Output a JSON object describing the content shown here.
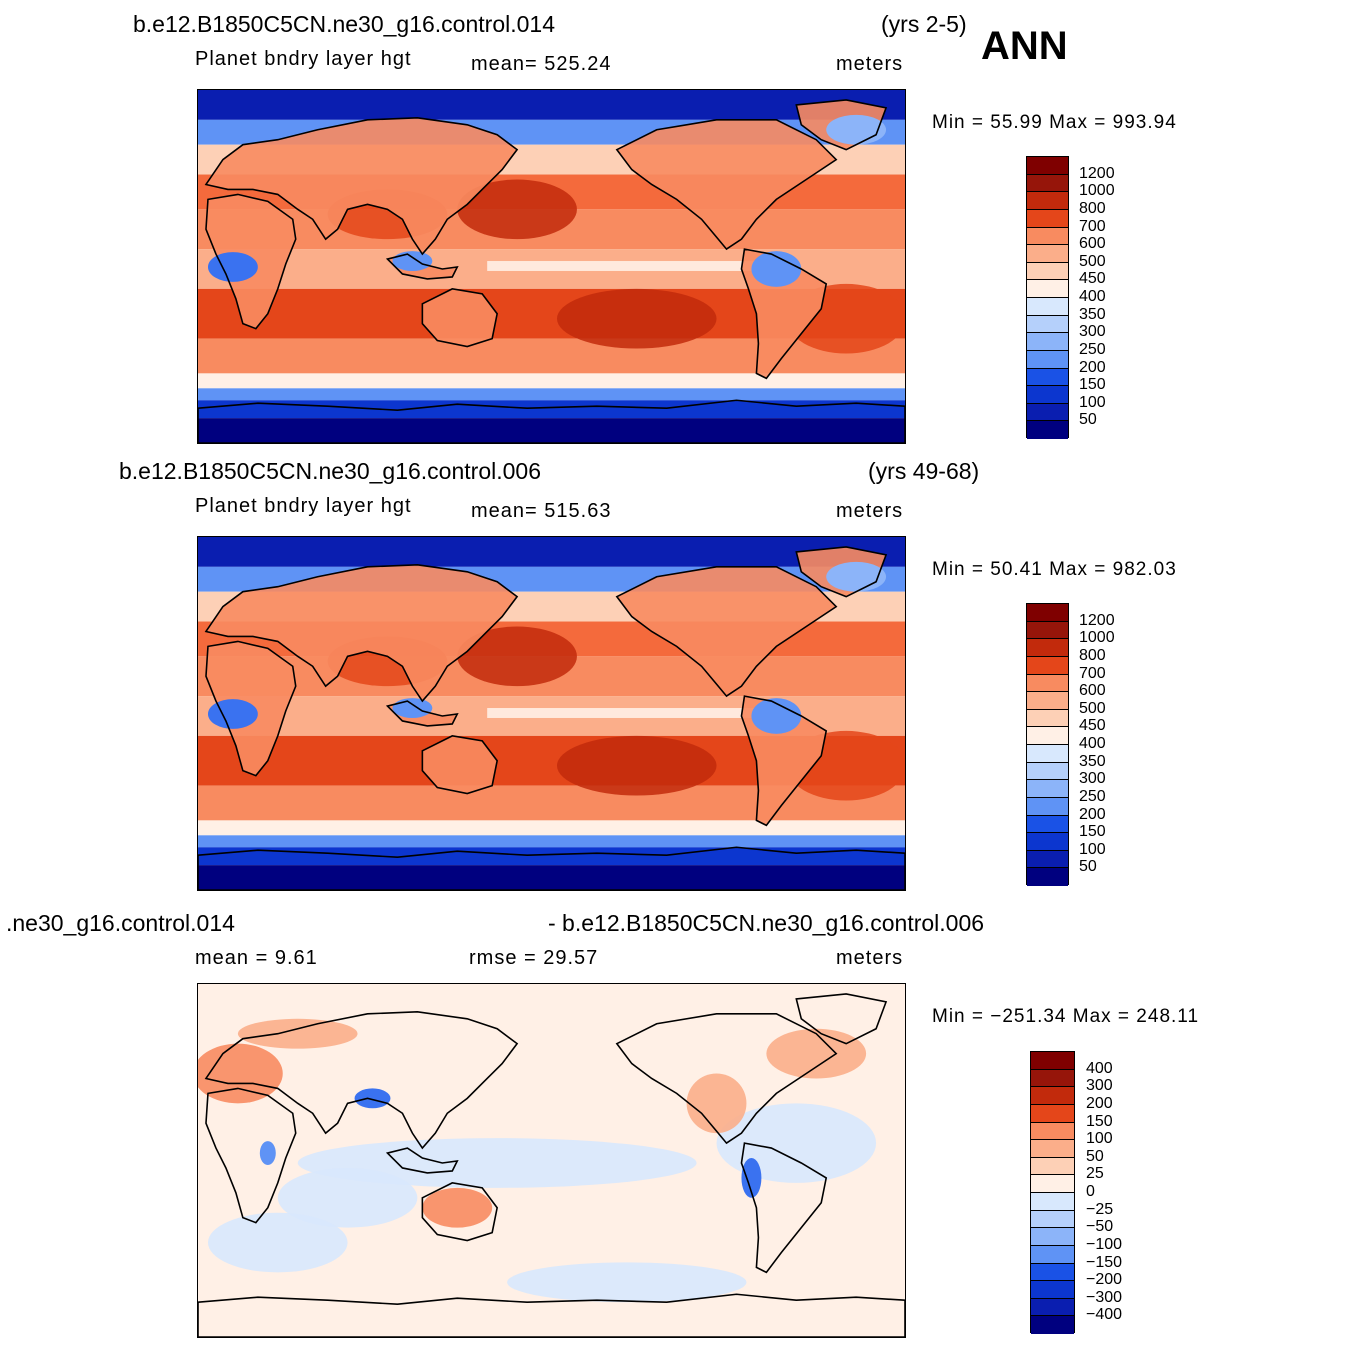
{
  "season": "ANN",
  "palette_abs": [
    "#00007f",
    "#0a1eb0",
    "#0c36cf",
    "#1a52e6",
    "#3a72f0",
    "#5f93f5",
    "#8cb4f9",
    "#b5d0fb",
    "#d8e8fd",
    "#fff0e6",
    "#fdd0b6",
    "#fbae8a",
    "#f88b60",
    "#f46a3c",
    "#e4461a",
    "#c22a0c",
    "#96150a",
    "#7f0000"
  ],
  "palette_diff": [
    "#00007f",
    "#0a1eb0",
    "#0c36cf",
    "#1a52e6",
    "#3a72f0",
    "#5f93f5",
    "#8cb4f9",
    "#b5d0fb",
    "#d8e8fd",
    "#fff0e6",
    "#fdd0b6",
    "#fbae8a",
    "#f88b60",
    "#f46a3c",
    "#e4461a",
    "#c22a0c",
    "#96150a",
    "#7f0000"
  ],
  "panels": [
    {
      "case": "b.e12.B1850C5CN.ne30_g16.control.014",
      "years": "(yrs 2-5)",
      "variable": "Planet  bndry  layer  hgt",
      "stat1": "mean=  525.24",
      "stat2": "",
      "units": "meters",
      "minmax": "Min  =    55.99  Max  =  993.94",
      "ticks": [
        "1200",
        "1000",
        "800",
        "700",
        "600",
        "500",
        "450",
        "400",
        "350",
        "300",
        "250",
        "200",
        "150",
        "100",
        "50"
      ],
      "kind": "abs",
      "contrast": 1.0
    },
    {
      "case": "b.e12.B1850C5CN.ne30_g16.control.006",
      "years": "(yrs 49-68)",
      "variable": "Planet  bndry  layer  hgt",
      "stat1": "mean=  515.63",
      "stat2": "",
      "units": "meters",
      "minmax": "Min  =    50.41  Max  =  982.03",
      "ticks": [
        "1200",
        "1000",
        "800",
        "700",
        "600",
        "500",
        "450",
        "400",
        "350",
        "300",
        "250",
        "200",
        "150",
        "100",
        "50"
      ],
      "kind": "abs",
      "contrast": 1.0
    },
    {
      "case": ".ne30_g16.control.014",
      "years": "- b.e12.B1850C5CN.ne30_g16.control.006",
      "variable": "mean  =      9.61",
      "stat1": "rmse  =    29.57",
      "stat2": "",
      "units": "meters",
      "minmax": "Min  =  −251.34  Max  =  248.11",
      "ticks": [
        "400",
        "300",
        "200",
        "150",
        "100",
        "50",
        "25",
        "0",
        "−25",
        "−50",
        "−100",
        "−150",
        "−200",
        "−300",
        "−400"
      ],
      "kind": "diff",
      "contrast": 1.0
    }
  ]
}
